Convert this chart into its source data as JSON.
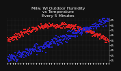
{
  "title": "Milw. WI Outdoor Humidity\nvs Temperature\nEvery 5 Minutes",
  "background_color": "#111111",
  "plot_bg_color": "#111111",
  "grid_color": "#444444",
  "temp_color": "#dd2222",
  "humid_color": "#2222cc",
  "dot_size": 1.5,
  "title_fontsize": 4.2,
  "tick_fontsize": 3.0,
  "title_color": "#ffffff",
  "tick_color": "#ffffff",
  "spine_color": "#666666",
  "ylim": [
    10,
    100
  ],
  "yticks": [
    15,
    25,
    35,
    45,
    55,
    65,
    75,
    85,
    95
  ],
  "n_points": 288,
  "seed": 7
}
